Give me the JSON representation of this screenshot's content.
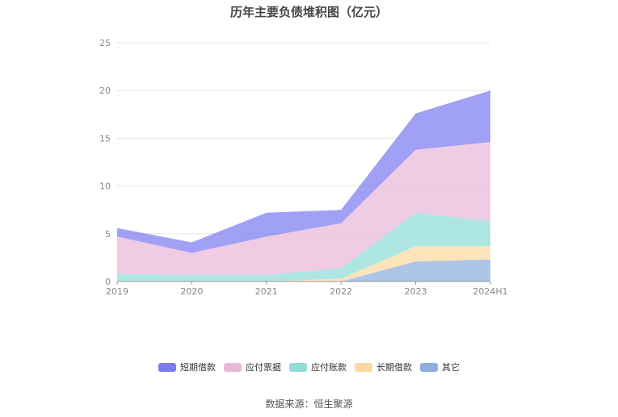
{
  "title": "历年主要负债堆积图（亿元）",
  "source": "数据来源：恒生聚源",
  "chart_data": {
    "type": "area",
    "stacked": true,
    "categories": [
      "2019",
      "2020",
      "2021",
      "2022",
      "2023",
      "2024H1"
    ],
    "ylim": [
      0,
      25
    ],
    "yticks": [
      0,
      5,
      10,
      15,
      20,
      25
    ],
    "grid": true,
    "legend_position": "bottom",
    "series": [
      {
        "name": "其它",
        "color": "#8eaede",
        "values": [
          0.0,
          0.0,
          0.0,
          0.0,
          2.1,
          2.3
        ]
      },
      {
        "name": "长期借款",
        "color": "#fbd9a0",
        "values": [
          0.0,
          0.0,
          0.0,
          0.3,
          1.6,
          1.4
        ]
      },
      {
        "name": "应付账款",
        "color": "#8fdcd9",
        "values": [
          0.8,
          0.7,
          0.7,
          1.1,
          3.5,
          2.6
        ]
      },
      {
        "name": "应付票据",
        "color": "#e9b8d9",
        "values": [
          3.9,
          2.3,
          4.0,
          4.7,
          6.6,
          8.3
        ]
      },
      {
        "name": "短期借款",
        "color": "#7b7bf0",
        "values": [
          0.9,
          1.1,
          2.5,
          1.4,
          3.8,
          5.4
        ]
      }
    ],
    "legend_order": [
      "短期借款",
      "应付票据",
      "应付账款",
      "长期借款",
      "其它"
    ]
  }
}
